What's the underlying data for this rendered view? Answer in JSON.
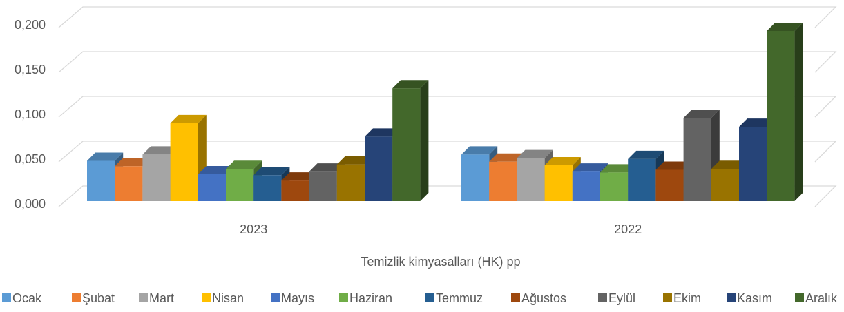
{
  "chart_data": {
    "type": "bar3d",
    "x_label": "Temizlik kimyasalları (HK) pp",
    "categories": [
      "2023",
      "2022"
    ],
    "ylim": [
      0,
      0.2
    ],
    "yticks": [
      {
        "value": 0,
        "label": "0,000"
      },
      {
        "value": 0.05,
        "label": "0,050"
      },
      {
        "value": 0.1,
        "label": "0,100"
      },
      {
        "value": 0.15,
        "label": "0,150"
      },
      {
        "value": 0.2,
        "label": "0,200"
      }
    ],
    "grid": true,
    "legend": "bottom",
    "series": [
      {
        "name": "Ocak",
        "color": "#5b9bd5",
        "values": [
          0.045,
          0.052
        ]
      },
      {
        "name": "Şubat",
        "color": "#ed7d31",
        "values": [
          0.039,
          0.044
        ]
      },
      {
        "name": "Mart",
        "color": "#a5a5a5",
        "values": [
          0.052,
          0.048
        ]
      },
      {
        "name": "Nisan",
        "color": "#ffc000",
        "values": [
          0.087,
          0.04
        ]
      },
      {
        "name": "Mayıs",
        "color": "#4472c4",
        "values": [
          0.03,
          0.033
        ]
      },
      {
        "name": "Haziran",
        "color": "#70ad47",
        "values": [
          0.036,
          0.032
        ]
      },
      {
        "name": "Temmuz",
        "color": "#255e91",
        "values": [
          0.029,
          0.047
        ]
      },
      {
        "name": "Ağustos",
        "color": "#9e480e",
        "values": [
          0.023,
          0.035
        ]
      },
      {
        "name": "Eylül",
        "color": "#636363",
        "values": [
          0.033,
          0.093
        ]
      },
      {
        "name": "Ekim",
        "color": "#997300",
        "values": [
          0.041,
          0.036
        ]
      },
      {
        "name": "Kasım",
        "color": "#264478",
        "values": [
          0.072,
          0.083
        ]
      },
      {
        "name": "Aralık",
        "color": "#43682b",
        "values": [
          0.126,
          0.19
        ]
      }
    ]
  }
}
